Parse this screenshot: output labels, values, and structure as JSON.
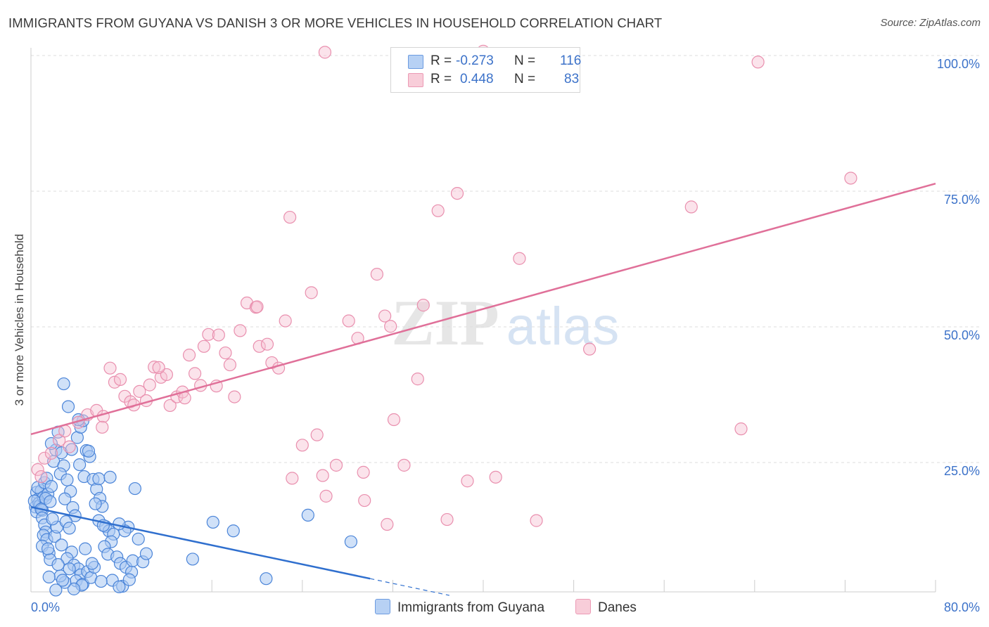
{
  "title": "IMMIGRANTS FROM GUYANA VS DANISH 3 OR MORE VEHICLES IN HOUSEHOLD CORRELATION CHART",
  "source": "Source: ZipAtlas.com",
  "watermark": {
    "part1": "ZIP",
    "part2": "atlas"
  },
  "legend": {
    "r_label": "R =",
    "n_label": "N =",
    "guyana": {
      "r": "-0.273",
      "n": "116"
    },
    "danes": {
      "r": "0.448",
      "n": "83"
    }
  },
  "colors": {
    "guyana_fill": "#aac8f2",
    "guyana_stroke": "#4a84d8",
    "guyana_line": "#2f6fce",
    "danes_fill": "#f6c2d2",
    "danes_stroke": "#e98fae",
    "danes_line": "#e07099",
    "tick_label": "#3c72c9",
    "grid": "#dddddd"
  },
  "chart_data": {
    "type": "scatter",
    "title": "IMMIGRANTS FROM GUYANA VS DANISH 3 OR MORE VEHICLES IN HOUSEHOLD CORRELATION CHART",
    "xlabel": "",
    "ylabel": "3 or more Vehicles in Household",
    "xlim": [
      0,
      80
    ],
    "ylim": [
      0,
      105
    ],
    "x_tick_labels": [
      "0.0%",
      "80.0%"
    ],
    "y_ticks": [
      25,
      50,
      75,
      100
    ],
    "y_tick_labels": [
      "25.0%",
      "50.0%",
      "75.0%",
      "100.0%"
    ],
    "legend_position": "top-center",
    "series": [
      {
        "name": "Immigrants from Guyana",
        "r": -0.273,
        "n": 116,
        "trend": {
          "x0": 0,
          "y0": 16.8,
          "x1": 30,
          "y1": 3.6,
          "dashed_to_x": 37
        },
        "points": [
          [
            0.5,
            19.5
          ],
          [
            0.6,
            18.2
          ],
          [
            0.4,
            16.8
          ],
          [
            0.7,
            17.5
          ],
          [
            0.5,
            15.9
          ],
          [
            0.8,
            17.1
          ],
          [
            0.9,
            19.8
          ],
          [
            1.0,
            16.2
          ],
          [
            0.6,
            20.4
          ],
          [
            1.1,
            18.6
          ],
          [
            0.3,
            17.9
          ],
          [
            0.9,
            16.4
          ],
          [
            1.2,
            21.3
          ],
          [
            1.4,
            22.1
          ],
          [
            1.5,
            19.2
          ],
          [
            1.3,
            18.4
          ],
          [
            1.7,
            17.8
          ],
          [
            1.8,
            20.6
          ],
          [
            1.0,
            14.8
          ],
          [
            1.2,
            13.5
          ],
          [
            1.3,
            12.2
          ],
          [
            1.1,
            11.6
          ],
          [
            1.4,
            10.8
          ],
          [
            1.0,
            9.6
          ],
          [
            1.6,
            8.3
          ],
          [
            1.7,
            7.1
          ],
          [
            1.5,
            9.1
          ],
          [
            2.1,
            11.4
          ],
          [
            2.3,
            13.1
          ],
          [
            1.9,
            14.6
          ],
          [
            2.0,
            25.2
          ],
          [
            2.2,
            27.3
          ],
          [
            1.8,
            28.5
          ],
          [
            2.4,
            30.6
          ],
          [
            2.7,
            26.8
          ],
          [
            2.9,
            24.4
          ],
          [
            2.6,
            22.9
          ],
          [
            3.2,
            21.8
          ],
          [
            3.5,
            19.7
          ],
          [
            3.0,
            18.3
          ],
          [
            3.7,
            16.7
          ],
          [
            3.9,
            15.2
          ],
          [
            3.1,
            14.1
          ],
          [
            3.4,
            12.9
          ],
          [
            2.7,
            9.8
          ],
          [
            3.6,
            8.5
          ],
          [
            3.2,
            7.3
          ],
          [
            3.8,
            6.1
          ],
          [
            4.2,
            5.4
          ],
          [
            4.4,
            4.3
          ],
          [
            4.0,
            3.2
          ],
          [
            4.6,
            2.6
          ],
          [
            5.0,
            4.9
          ],
          [
            5.3,
            3.8
          ],
          [
            5.6,
            5.7
          ],
          [
            4.5,
            2.4
          ],
          [
            3.8,
            1.7
          ],
          [
            3.0,
            2.9
          ],
          [
            2.6,
            4.1
          ],
          [
            2.2,
            1.5
          ],
          [
            3.6,
            27.4
          ],
          [
            4.1,
            29.6
          ],
          [
            4.4,
            31.5
          ],
          [
            4.6,
            32.7
          ],
          [
            4.9,
            27.2
          ],
          [
            5.2,
            26.1
          ],
          [
            4.3,
            24.6
          ],
          [
            4.7,
            22.4
          ],
          [
            5.5,
            21.9
          ],
          [
            5.8,
            20.1
          ],
          [
            6.1,
            18.4
          ],
          [
            6.3,
            16.9
          ],
          [
            6.0,
            14.3
          ],
          [
            6.6,
            13.2
          ],
          [
            6.9,
            12.4
          ],
          [
            7.3,
            11.8
          ],
          [
            7.1,
            10.4
          ],
          [
            6.5,
            9.5
          ],
          [
            6.8,
            8.1
          ],
          [
            7.6,
            7.6
          ],
          [
            7.9,
            6.4
          ],
          [
            8.4,
            5.7
          ],
          [
            8.9,
            4.8
          ],
          [
            7.2,
            3.3
          ],
          [
            8.1,
            2.2
          ],
          [
            7.8,
            2.1
          ],
          [
            6.2,
            3.1
          ],
          [
            5.4,
            6.4
          ],
          [
            8.6,
            13.1
          ],
          [
            8.3,
            12.4
          ],
          [
            9.2,
            20.2
          ],
          [
            9.5,
            10.9
          ],
          [
            9.0,
            6.9
          ],
          [
            9.9,
            6.7
          ],
          [
            10.2,
            8.2
          ],
          [
            8.7,
            3.4
          ],
          [
            2.9,
            39.5
          ],
          [
            3.3,
            35.3
          ],
          [
            4.2,
            32.9
          ],
          [
            5.1,
            27.1
          ],
          [
            6.0,
            22.0
          ],
          [
            7.0,
            22.3
          ],
          [
            5.7,
            17.4
          ],
          [
            6.4,
            13.4
          ],
          [
            7.8,
            13.7
          ],
          [
            4.8,
            9.1
          ],
          [
            3.4,
            5.4
          ],
          [
            2.4,
            6.2
          ],
          [
            1.6,
            3.9
          ],
          [
            2.8,
            3.3
          ],
          [
            16.1,
            14.0
          ],
          [
            17.9,
            12.4
          ],
          [
            24.5,
            15.3
          ],
          [
            28.3,
            10.4
          ],
          [
            14.3,
            7.2
          ],
          [
            20.8,
            3.6
          ]
        ]
      },
      {
        "name": "Danes",
        "r": 0.448,
        "n": 83,
        "trend": {
          "x0": 0,
          "y0": 30.2,
          "x1": 80,
          "y1": 76.4
        },
        "points": [
          [
            0.6,
            23.7
          ],
          [
            0.9,
            22.4
          ],
          [
            1.2,
            25.8
          ],
          [
            1.8,
            26.7
          ],
          [
            2.5,
            29.1
          ],
          [
            3.0,
            30.8
          ],
          [
            3.4,
            27.9
          ],
          [
            4.2,
            32.4
          ],
          [
            5.0,
            33.8
          ],
          [
            5.8,
            34.6
          ],
          [
            6.4,
            33.5
          ],
          [
            7.0,
            42.4
          ],
          [
            7.4,
            39.8
          ],
          [
            7.9,
            40.3
          ],
          [
            8.3,
            37.2
          ],
          [
            8.8,
            36.2
          ],
          [
            9.1,
            35.6
          ],
          [
            9.6,
            38.1
          ],
          [
            10.2,
            36.4
          ],
          [
            10.5,
            39.3
          ],
          [
            10.9,
            42.6
          ],
          [
            11.5,
            40.7
          ],
          [
            12.0,
            41.2
          ],
          [
            12.3,
            35.5
          ],
          [
            12.9,
            37.1
          ],
          [
            13.4,
            38.0
          ],
          [
            14.0,
            44.8
          ],
          [
            14.5,
            41.4
          ],
          [
            15.0,
            39.2
          ],
          [
            15.3,
            46.4
          ],
          [
            15.7,
            48.6
          ],
          [
            16.4,
            39.1
          ],
          [
            17.2,
            45.2
          ],
          [
            17.6,
            43.0
          ],
          [
            18.0,
            37.1
          ],
          [
            18.5,
            49.3
          ],
          [
            19.1,
            54.4
          ],
          [
            19.9,
            53.6
          ],
          [
            20.2,
            46.4
          ],
          [
            20.9,
            46.8
          ],
          [
            21.3,
            43.4
          ],
          [
            21.9,
            42.4
          ],
          [
            22.5,
            51.1
          ],
          [
            22.9,
            70.2
          ],
          [
            24.0,
            28.2
          ],
          [
            24.8,
            56.3
          ],
          [
            25.3,
            30.1
          ],
          [
            25.8,
            22.6
          ],
          [
            26.1,
            18.8
          ],
          [
            27.0,
            24.5
          ],
          [
            28.1,
            51.1
          ],
          [
            28.9,
            47.9
          ],
          [
            29.4,
            23.2
          ],
          [
            30.6,
            59.7
          ],
          [
            31.3,
            52.0
          ],
          [
            31.8,
            50.1
          ],
          [
            32.1,
            32.9
          ],
          [
            33.0,
            24.5
          ],
          [
            34.2,
            40.4
          ],
          [
            34.7,
            54.0
          ],
          [
            35.2,
            94.6
          ],
          [
            36.0,
            71.4
          ],
          [
            36.8,
            14.5
          ],
          [
            37.7,
            74.6
          ],
          [
            38.6,
            21.6
          ],
          [
            40.0,
            100.8
          ],
          [
            41.1,
            22.3
          ],
          [
            43.2,
            62.6
          ],
          [
            44.7,
            14.3
          ],
          [
            49.4,
            45.9
          ],
          [
            58.4,
            72.1
          ],
          [
            62.8,
            31.2
          ],
          [
            64.3,
            98.8
          ],
          [
            72.5,
            77.4
          ],
          [
            29.5,
            18.0
          ],
          [
            26.0,
            100.6
          ],
          [
            23.1,
            22.1
          ],
          [
            20.0,
            53.7
          ],
          [
            16.6,
            48.5
          ],
          [
            13.6,
            36.9
          ],
          [
            11.3,
            42.5
          ],
          [
            6.3,
            31.5
          ],
          [
            31.5,
            13.6
          ]
        ]
      }
    ]
  },
  "bottom_legend": {
    "guyana_label": "Immigrants from Guyana",
    "danes_label": "Danes"
  }
}
